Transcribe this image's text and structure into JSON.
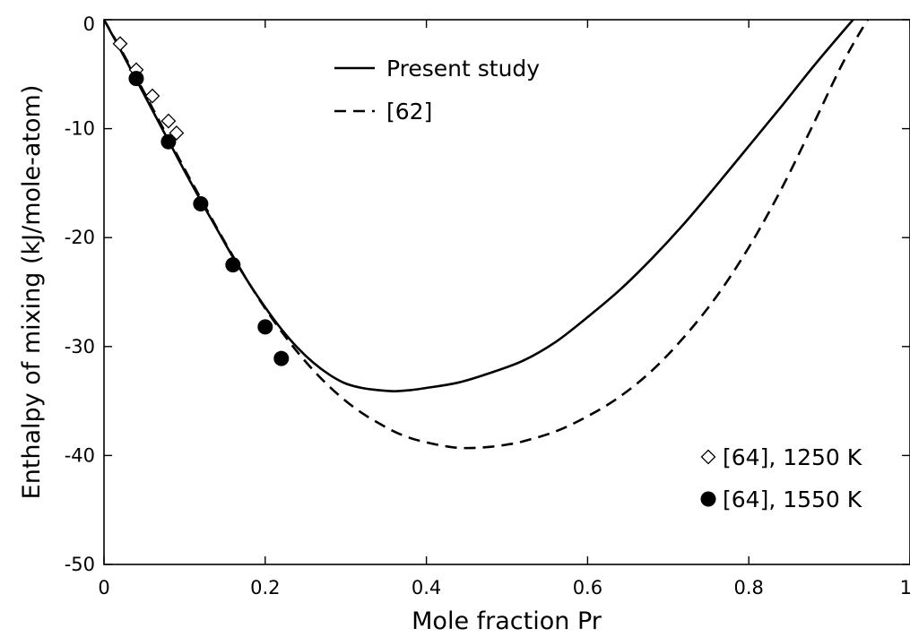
{
  "chart_data": {
    "type": "line",
    "xlabel": "Mole fraction Pr",
    "ylabel": "Enthalpy of mixing (kJ/mole-atom)",
    "xlim": [
      0,
      1
    ],
    "ylim": [
      -50,
      0
    ],
    "x_ticks": [
      "0",
      "0.2",
      "0.4",
      "0.6",
      "0.8",
      "1"
    ],
    "x_tick_values": [
      0,
      0.2,
      0.4,
      0.6,
      0.8,
      1
    ],
    "y_ticks": [
      "0",
      "-10",
      "-20",
      "-30",
      "-40",
      "-50"
    ],
    "y_tick_values": [
      0,
      -10,
      -20,
      -30,
      -40,
      -50
    ],
    "grid": false,
    "series": [
      {
        "name": "Present study",
        "style": "solid",
        "color": "#000000",
        "x": [
          0,
          0.02,
          0.04,
          0.06,
          0.08,
          0.1,
          0.12,
          0.14,
          0.16,
          0.18,
          0.2,
          0.22,
          0.24,
          0.26,
          0.28,
          0.3,
          0.32,
          0.34,
          0.36,
          0.38,
          0.4,
          0.44,
          0.48,
          0.52,
          0.56,
          0.6,
          0.64,
          0.68,
          0.72,
          0.76,
          0.8,
          0.84,
          0.88,
          0.92,
          0.96,
          1
        ],
        "y": [
          0,
          -2.7,
          -5.5,
          -8.3,
          -11.1,
          -13.9,
          -16.6,
          -19.2,
          -21.8,
          -24.2,
          -26.4,
          -28.4,
          -30.1,
          -31.5,
          -32.6,
          -33.4,
          -33.8,
          -34.0,
          -34.1,
          -34.0,
          -33.8,
          -33.3,
          -32.4,
          -31.3,
          -29.6,
          -27.3,
          -24.8,
          -21.9,
          -18.7,
          -15.2,
          -11.6,
          -8.0,
          -4.3,
          -0.8,
          2.6,
          6.2
        ]
      },
      {
        "name": "[62]",
        "style": "dashed",
        "color": "#000000",
        "x": [
          0,
          0.02,
          0.04,
          0.06,
          0.08,
          0.1,
          0.12,
          0.14,
          0.16,
          0.18,
          0.2,
          0.22,
          0.24,
          0.26,
          0.28,
          0.3,
          0.32,
          0.34,
          0.36,
          0.38,
          0.4,
          0.42,
          0.44,
          0.46,
          0.48,
          0.5,
          0.52,
          0.56,
          0.6,
          0.64,
          0.68,
          0.72,
          0.76,
          0.8,
          0.84,
          0.88,
          0.92,
          0.96,
          1
        ],
        "y": [
          0,
          -2.6,
          -5.3,
          -8.1,
          -10.9,
          -13.7,
          -16.4,
          -19.1,
          -21.7,
          -24.2,
          -26.5,
          -28.6,
          -30.5,
          -32.2,
          -33.7,
          -35.0,
          -36.1,
          -37.0,
          -37.8,
          -38.4,
          -38.8,
          -39.1,
          -39.3,
          -39.3,
          -39.2,
          -39.0,
          -38.7,
          -37.8,
          -36.4,
          -34.6,
          -32.2,
          -29.1,
          -25.4,
          -20.9,
          -15.6,
          -9.6,
          -3.5,
          1.5,
          6.0
        ]
      },
      {
        "name": "[64], 1250 K",
        "marker": "open-diamond",
        "color": "#000000",
        "x": [
          0.02,
          0.04,
          0.06,
          0.08,
          0.09
        ],
        "y": [
          -2.2,
          -4.6,
          -7.0,
          -9.3,
          -10.4
        ]
      },
      {
        "name": "[64], 1550 K",
        "marker": "filled-circle",
        "color": "#000000",
        "x": [
          0.04,
          0.08,
          0.12,
          0.16,
          0.2,
          0.22
        ],
        "y": [
          -5.4,
          -11.2,
          -16.9,
          -22.5,
          -28.2,
          -31.1
        ]
      }
    ],
    "legend_top": {
      "placement": "top-center",
      "entries": [
        {
          "label": "Present study",
          "style": "solid"
        },
        {
          "label": "[62]",
          "style": "dashed"
        }
      ]
    },
    "legend_bottom": {
      "placement": "bottom-right",
      "entries": [
        {
          "label": "[64], 1250 K",
          "marker": "open-diamond"
        },
        {
          "label": "[64], 1550 K",
          "marker": "filled-circle"
        }
      ]
    }
  }
}
